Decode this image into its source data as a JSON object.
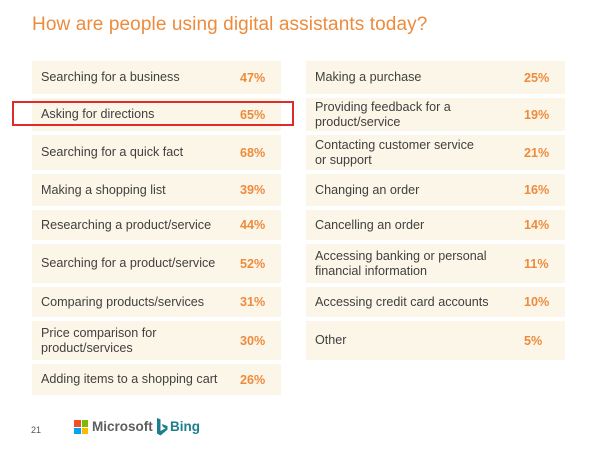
{
  "title": "How are people using digital assistants today?",
  "colors": {
    "accent": "#ed8b3d",
    "row_background": "#fcf6e8",
    "highlight_border": "#e02b2b",
    "text": "#404040"
  },
  "left_items": [
    {
      "label": "Searching for a business",
      "value": "47%"
    },
    {
      "label": "Asking for directions",
      "value": "65%"
    },
    {
      "label": "Searching for a quick fact",
      "value": "68%"
    },
    {
      "label": "Making a shopping list",
      "value": "39%"
    },
    {
      "label": "Researching a product/service",
      "value": "44%"
    },
    {
      "label": "Searching for a product/service",
      "value": "52%"
    },
    {
      "label": "Comparing products/services",
      "value": "31%"
    },
    {
      "label": "Price comparison for product/services",
      "value": "30%"
    },
    {
      "label": "Adding items to a shopping cart",
      "value": "26%"
    }
  ],
  "right_items": [
    {
      "label": "Making a purchase",
      "value": "25%"
    },
    {
      "label": "Providing feedback for a product/service",
      "value": "19%"
    },
    {
      "label": "Contacting customer service or support",
      "value": "21%"
    },
    {
      "label": "Changing an order",
      "value": "16%"
    },
    {
      "label": "Cancelling an order",
      "value": "14%"
    },
    {
      "label": "Accessing banking or personal financial information",
      "value": "11%"
    },
    {
      "label": "Accessing credit card accounts",
      "value": "10%"
    },
    {
      "label": "Other",
      "value": "5%"
    }
  ],
  "highlighted_item": "Asking for directions",
  "footer": {
    "page_number": "21",
    "microsoft_label": "Microsoft",
    "bing_label": "Bing",
    "microsoft_icon": "microsoft-logo",
    "bing_icon": "bing-logo"
  }
}
